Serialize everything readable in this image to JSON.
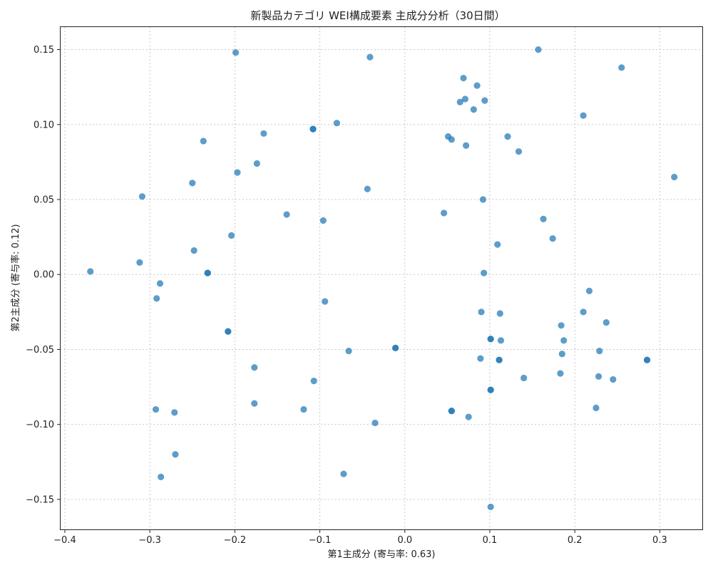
{
  "chart_data": {
    "type": "scatter",
    "title": "新製品カテゴリ WEI構成要素 主成分分析（30日間）",
    "xlabel": "第1主成分 (寄与率: 0.63)",
    "ylabel": "第2主成分 (寄与率: 0.12)",
    "xlim": [
      -0.405,
      0.35
    ],
    "ylim": [
      -0.17,
      0.165
    ],
    "xticks": [
      -0.4,
      -0.3,
      -0.2,
      -0.1,
      0.0,
      0.1,
      0.2,
      0.3
    ],
    "xtick_labels": [
      "−0.4",
      "−0.3",
      "−0.2",
      "−0.1",
      "0.0",
      "0.1",
      "0.2",
      "0.3"
    ],
    "yticks": [
      0.15,
      0.1,
      0.05,
      0.0,
      -0.05,
      -0.1,
      -0.15
    ],
    "ytick_labels": [
      "0.15",
      "0.10",
      "0.05",
      "0.00",
      "−0.05",
      "−0.10",
      "−0.15"
    ],
    "grid": true,
    "marker_color": "#1f77b4",
    "points": [
      [
        -0.199,
        0.148
      ],
      [
        -0.041,
        0.145
      ],
      [
        0.157,
        0.15
      ],
      [
        0.069,
        0.131
      ],
      [
        0.085,
        0.126
      ],
      [
        0.071,
        0.117
      ],
      [
        0.065,
        0.115
      ],
      [
        0.094,
        0.116
      ],
      [
        0.081,
        0.11
      ],
      [
        0.255,
        0.138
      ],
      [
        0.21,
        0.106
      ],
      [
        -0.108,
        0.097
      ],
      [
        -0.108,
        0.097
      ],
      [
        -0.08,
        0.101
      ],
      [
        -0.166,
        0.094
      ],
      [
        -0.237,
        0.089
      ],
      [
        0.051,
        0.092
      ],
      [
        0.055,
        0.09
      ],
      [
        0.121,
        0.092
      ],
      [
        0.072,
        0.086
      ],
      [
        0.134,
        0.082
      ],
      [
        -0.174,
        0.074
      ],
      [
        -0.197,
        0.068
      ],
      [
        0.317,
        0.065
      ],
      [
        -0.25,
        0.061
      ],
      [
        -0.044,
        0.057
      ],
      [
        -0.309,
        0.052
      ],
      [
        0.092,
        0.05
      ],
      [
        -0.139,
        0.04
      ],
      [
        0.046,
        0.041
      ],
      [
        0.163,
        0.037
      ],
      [
        -0.096,
        0.036
      ],
      [
        -0.204,
        0.026
      ],
      [
        0.174,
        0.024
      ],
      [
        0.109,
        0.02
      ],
      [
        -0.248,
        0.016
      ],
      [
        -0.312,
        0.008
      ],
      [
        -0.37,
        0.002
      ],
      [
        -0.232,
        0.001
      ],
      [
        -0.232,
        0.001
      ],
      [
        0.093,
        0.001
      ],
      [
        -0.288,
        -0.006
      ],
      [
        -0.292,
        -0.016
      ],
      [
        0.217,
        -0.011
      ],
      [
        -0.094,
        -0.018
      ],
      [
        0.09,
        -0.025
      ],
      [
        0.112,
        -0.026
      ],
      [
        0.21,
        -0.025
      ],
      [
        0.237,
        -0.032
      ],
      [
        0.184,
        -0.034
      ],
      [
        -0.208,
        -0.038
      ],
      [
        -0.208,
        -0.038
      ],
      [
        0.101,
        -0.043
      ],
      [
        0.101,
        -0.043
      ],
      [
        0.113,
        -0.044
      ],
      [
        0.187,
        -0.044
      ],
      [
        -0.066,
        -0.051
      ],
      [
        -0.011,
        -0.049
      ],
      [
        -0.011,
        -0.049
      ],
      [
        0.229,
        -0.051
      ],
      [
        0.185,
        -0.053
      ],
      [
        0.089,
        -0.056
      ],
      [
        0.111,
        -0.057
      ],
      [
        0.111,
        -0.057
      ],
      [
        0.285,
        -0.057
      ],
      [
        0.285,
        -0.057
      ],
      [
        -0.177,
        -0.062
      ],
      [
        0.183,
        -0.066
      ],
      [
        0.14,
        -0.069
      ],
      [
        0.228,
        -0.068
      ],
      [
        0.245,
        -0.07
      ],
      [
        -0.107,
        -0.071
      ],
      [
        0.101,
        -0.077
      ],
      [
        0.101,
        -0.077
      ],
      [
        -0.177,
        -0.086
      ],
      [
        -0.119,
        -0.09
      ],
      [
        0.055,
        -0.091
      ],
      [
        0.055,
        -0.091
      ],
      [
        0.225,
        -0.089
      ],
      [
        -0.293,
        -0.09
      ],
      [
        -0.271,
        -0.092
      ],
      [
        0.075,
        -0.095
      ],
      [
        -0.035,
        -0.099
      ],
      [
        -0.27,
        -0.12
      ],
      [
        -0.072,
        -0.133
      ],
      [
        -0.287,
        -0.135
      ],
      [
        0.101,
        -0.155
      ]
    ]
  }
}
